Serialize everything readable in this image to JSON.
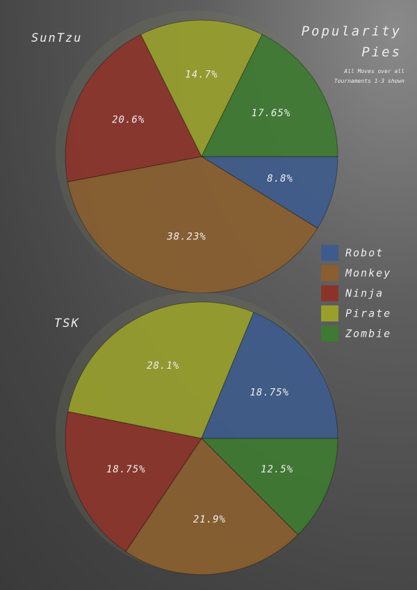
{
  "title": "Popularity Pies",
  "subtitle": "All Moves over all Tournaments 1-3 shown",
  "chart_data": [
    {
      "type": "pie",
      "title": "SunTzu",
      "categories": [
        "Robot",
        "Monkey",
        "Ninja",
        "Pirate",
        "Zombie"
      ],
      "values": [
        8.8,
        38.23,
        20.6,
        14.7,
        17.65
      ],
      "value_labels": [
        "8.8%",
        "38.23%",
        "20.6%",
        "14.7%",
        "17.65%"
      ],
      "colors": [
        "#3d5b8c",
        "#8a5e2f",
        "#8c3329",
        "#98a02b",
        "#3e7a31"
      ]
    },
    {
      "type": "pie",
      "title": "TSK",
      "categories": [
        "Zombie",
        "Monkey",
        "Ninja",
        "Pirate",
        "Robot"
      ],
      "values": [
        12.5,
        21.9,
        18.75,
        28.1,
        18.75
      ],
      "value_labels": [
        "12.5%",
        "21.9%",
        "18.75%",
        "28.1%",
        "18.75%"
      ],
      "colors": [
        "#3e7a31",
        "#8a5e2f",
        "#8c3329",
        "#98a02b",
        "#3d5b8c"
      ]
    }
  ]
}
